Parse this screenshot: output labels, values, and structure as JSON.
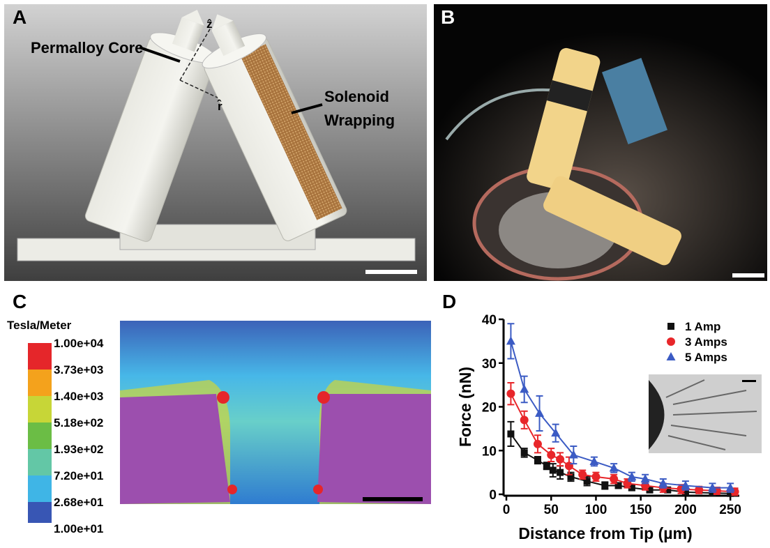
{
  "panels": {
    "A": {
      "letter": "A",
      "core_label": "Permalloy Core",
      "solenoid_label": [
        "Solenoid",
        "Wrapping"
      ],
      "axis_z": "ẑ",
      "axis_r": "r̂"
    },
    "B": {
      "letter": "B"
    },
    "C": {
      "letter": "C",
      "colorbar_title": "Tesla/Meter",
      "colorbar_labels": [
        "1.00e+04",
        "3.73e+03",
        "1.40e+03",
        "5.18e+02",
        "1.93e+02",
        "7.20e+01",
        "2.68e+01",
        "1.00e+01"
      ]
    },
    "D": {
      "letter": "D"
    }
  },
  "chart_data": {
    "type": "scatter",
    "xlabel": "Distance from Tip (µm)",
    "ylabel": "Force (nN)",
    "xlim": [
      0,
      260
    ],
    "ylim": [
      0,
      40
    ],
    "xticks": [
      0,
      50,
      100,
      150,
      200,
      250
    ],
    "yticks": [
      0,
      10,
      20,
      30,
      40
    ],
    "legend": "upper right",
    "series": [
      {
        "name": "1 Amp",
        "color": "#111111",
        "marker": "square",
        "x": [
          5,
          20,
          35,
          45,
          52,
          60,
          72,
          90,
          110,
          125,
          140,
          160,
          180,
          200,
          230,
          250
        ],
        "values": [
          13.8,
          9.5,
          7.8,
          6.5,
          5.5,
          5,
          4,
          3,
          2,
          2,
          1.5,
          1,
          1,
          0.5,
          0.3,
          0.2
        ],
        "errors": [
          2.8,
          1,
          0.8,
          0.8,
          1.5,
          1.5,
          1,
          1,
          0.8,
          0.6,
          0.6,
          0.5,
          0.5,
          0.5,
          0.4,
          0.4
        ]
      },
      {
        "name": "3 Amps",
        "color": "#e8262a",
        "marker": "circle",
        "x": [
          5,
          20,
          35,
          50,
          60,
          70,
          85,
          100,
          120,
          135,
          155,
          175,
          195,
          215,
          235,
          255
        ],
        "values": [
          23,
          17,
          11.5,
          9,
          8,
          6.5,
          4.5,
          4,
          3.5,
          2.5,
          2,
          1.5,
          1.2,
          1,
          0.8,
          0.6
        ],
        "errors": [
          2.5,
          2,
          2,
          1.5,
          1.5,
          2,
          1,
          1,
          1,
          1,
          1,
          1,
          1,
          0.8,
          0.8,
          0.8
        ]
      },
      {
        "name": "5 Amps",
        "color": "#3b5bc4",
        "marker": "triangle",
        "x": [
          5,
          20,
          37,
          55,
          75,
          98,
          120,
          140,
          155,
          175,
          200,
          230,
          250
        ],
        "values": [
          35,
          24,
          18.5,
          14,
          9,
          7.5,
          6,
          4,
          3.5,
          2.5,
          2,
          1.5,
          1.5
        ],
        "errors": [
          4,
          3,
          4,
          2,
          2,
          1,
          1,
          1,
          1,
          1,
          1,
          1,
          1
        ]
      }
    ]
  }
}
